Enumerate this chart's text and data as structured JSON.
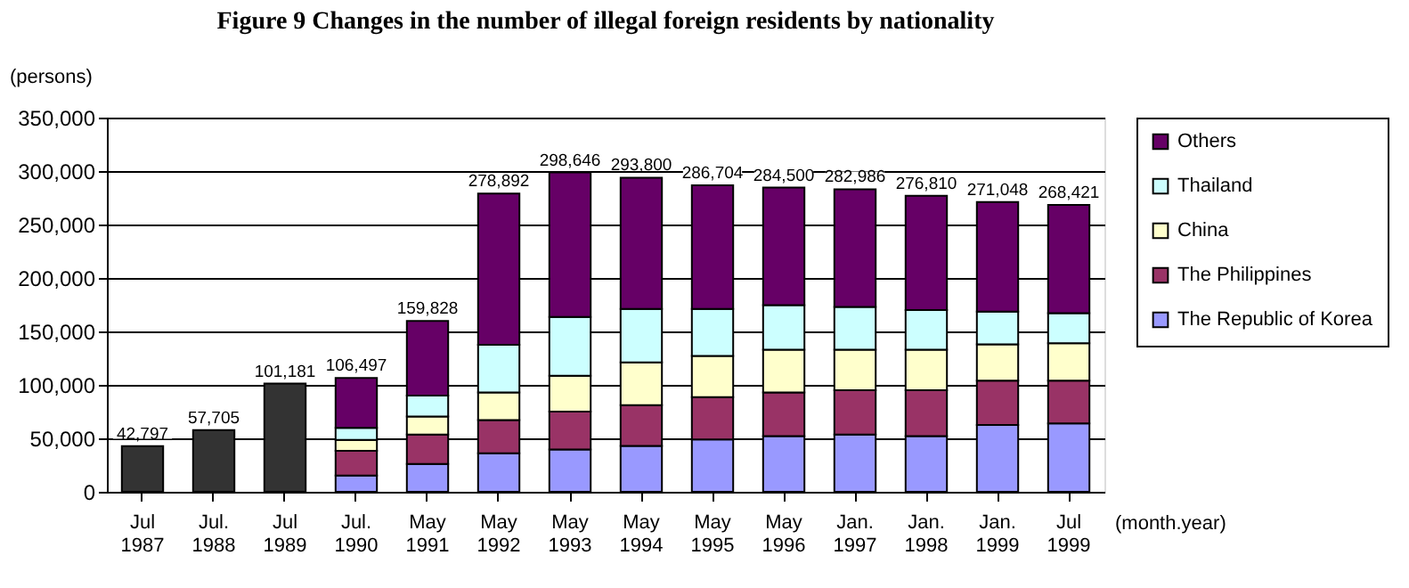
{
  "chart_data": {
    "type": "bar",
    "title": "Figure 9 Changes in the number of illegal foreign residents by nationality",
    "categories": [
      "Jul 1987",
      "Jul. 1988",
      "Jul 1989",
      "Jul. 1990",
      "May 1991",
      "May 1992",
      "May 1993",
      "May 1994",
      "May 1995",
      "May 1996",
      "Jan. 1997",
      "Jan. 1998",
      "Jan. 1999",
      "Jul 1999"
    ],
    "xlabel": "(month.year)",
    "ylabel": "(persons)",
    "stacked": true,
    "series": [
      {
        "color": "#333333",
        "values": [
          42797,
          57705,
          101181,
          null,
          null,
          null,
          null,
          null,
          null,
          null,
          null,
          null,
          null,
          null
        ]
      },
      {
        "name": "The Republic of Korea",
        "color": "#9999ff",
        "values": [
          null,
          null,
          null,
          15300,
          26000,
          36000,
          39500,
          43000,
          49000,
          52000,
          53500,
          52000,
          62500,
          64000
        ]
      },
      {
        "name": "The Philippines",
        "color": "#993366",
        "values": [
          null,
          null,
          null,
          23000,
          27500,
          31000,
          35500,
          38000,
          39500,
          41000,
          41500,
          43000,
          41500,
          40000
        ]
      },
      {
        "name": "China",
        "color": "#ffffcc",
        "values": [
          null,
          null,
          null,
          10200,
          17000,
          26000,
          33500,
          40000,
          38500,
          40000,
          38000,
          38000,
          34000,
          35000
        ]
      },
      {
        "name": "Thailand",
        "color": "#ccffff",
        "values": [
          null,
          null,
          null,
          11200,
          19500,
          44500,
          55000,
          50000,
          44000,
          41500,
          40000,
          37000,
          30500,
          28000
        ]
      },
      {
        "name": "Others",
        "color": "#660066",
        "values": [
          null,
          null,
          null,
          46797,
          69828,
          141392,
          135146,
          122800,
          115704,
          110000,
          109986,
          106810,
          102548,
          101421
        ]
      }
    ],
    "totals": [
      "42,797",
      "57,705",
      "101,181",
      "106,497",
      "159,828",
      "278,892",
      "298,646",
      "293,800",
      "286,704",
      "284,500",
      "282,986",
      "276,810",
      "271,048",
      "268,421"
    ],
    "ylim": [
      0,
      350000
    ],
    "yticks": [
      0,
      {
        "value": 50000,
        "label": "50,000"
      },
      {
        "value": 100000,
        "label": "100,000"
      },
      {
        "value": 150000,
        "label": "150,000"
      },
      {
        "value": 200000,
        "label": "200,000"
      },
      {
        "value": 250000,
        "label": "250,000"
      },
      {
        "value": 300000,
        "label": "300,000"
      },
      {
        "value": 350000,
        "label": "350,000"
      }
    ],
    "grid": "y",
    "legend": "right"
  }
}
